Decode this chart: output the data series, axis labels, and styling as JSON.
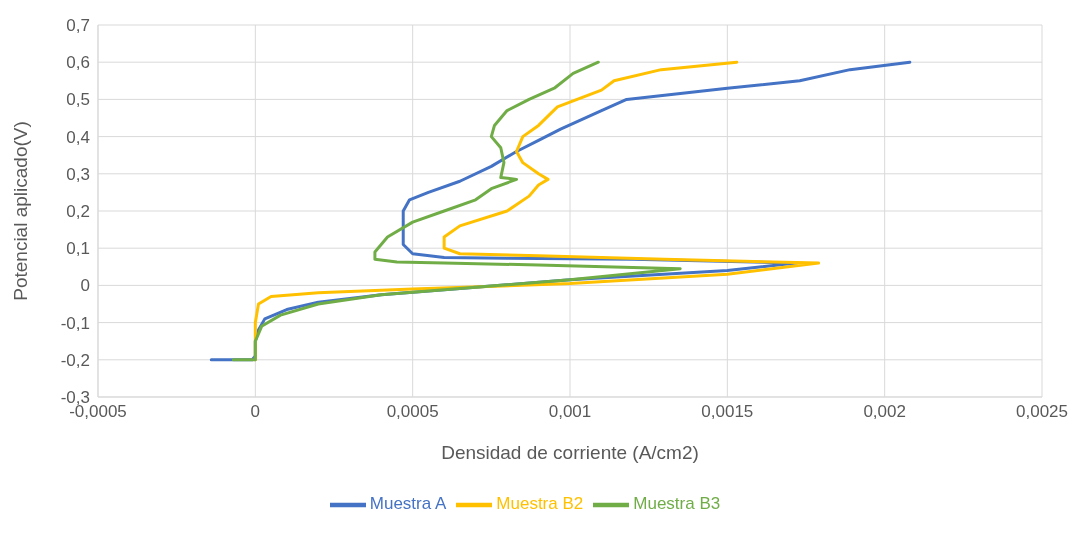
{
  "chart_data": {
    "type": "line",
    "xlabel": "Densidad de corriente (A/cm2)",
    "ylabel": "Potencial aplicado(V)",
    "xlim": [
      -0.0005,
      0.0025
    ],
    "xticks": [
      {
        "value": -0.0005,
        "label": "-0,0005"
      },
      {
        "value": 0,
        "label": "0"
      },
      {
        "value": 0.0005,
        "label": "0,0005"
      },
      {
        "value": 0.001,
        "label": "0,001"
      },
      {
        "value": 0.0015,
        "label": "0,0015"
      },
      {
        "value": 0.002,
        "label": "0,002"
      },
      {
        "value": 0.0025,
        "label": "0,0025"
      }
    ],
    "ylim": [
      -0.3,
      0.7
    ],
    "yticks": [
      {
        "value": -0.3,
        "label": "-0,3"
      },
      {
        "value": -0.2,
        "label": "-0,2"
      },
      {
        "value": -0.1,
        "label": "-0,1"
      },
      {
        "value": 0,
        "label": "0"
      },
      {
        "value": 0.1,
        "label": "0,1"
      },
      {
        "value": 0.2,
        "label": "0,2"
      },
      {
        "value": 0.3,
        "label": "0,3"
      },
      {
        "value": 0.4,
        "label": "0,4"
      },
      {
        "value": 0.5,
        "label": "0,5"
      },
      {
        "value": 0.6,
        "label": "0,6"
      },
      {
        "value": 0.7,
        "label": "0,7"
      }
    ],
    "grid": true,
    "legend": "bottom",
    "marker": "none",
    "line_style": "solid",
    "series": [
      {
        "name": "Muestra A",
        "color": "#4472c4",
        "x": [
          -0.00014,
          -1e-05,
          0,
          0,
          1e-05,
          3e-05,
          0.0001,
          0.0002,
          0.0004,
          0.0007,
          0.001,
          0.0015,
          0.00172,
          0.0012,
          0.0008,
          0.0006,
          0.0005,
          0.00047,
          0.00047,
          0.00047,
          0.00049,
          0.00055,
          0.00065,
          0.00075,
          0.00083,
          0.0009,
          0.00097,
          0.0011,
          0.00118,
          0.0015,
          0.00173,
          0.00189,
          0.00208
        ],
        "values": [
          -0.2,
          -0.2,
          -0.19,
          -0.15,
          -0.12,
          -0.09,
          -0.065,
          -0.045,
          -0.025,
          -0.005,
          0.015,
          0.04,
          0.06,
          0.07,
          0.073,
          0.075,
          0.085,
          0.11,
          0.15,
          0.2,
          0.23,
          0.25,
          0.28,
          0.32,
          0.36,
          0.39,
          0.42,
          0.47,
          0.5,
          0.53,
          0.55,
          0.58,
          0.6
        ]
      },
      {
        "name": "Muestra B2",
        "color": "#ffc000",
        "x": [
          0,
          0,
          1e-05,
          5e-05,
          0.0002,
          0.0005,
          0.001,
          0.0015,
          0.00179,
          0.0013,
          0.0009,
          0.00065,
          0.0006,
          0.0006,
          0.00065,
          0.0008,
          0.00087,
          0.0009,
          0.00093,
          0.0009,
          0.00085,
          0.00083,
          0.00085,
          0.0009,
          0.00096,
          0.0011,
          0.00114,
          0.00129,
          0.00153
        ],
        "values": [
          -0.2,
          -0.1,
          -0.05,
          -0.03,
          -0.02,
          -0.01,
          0.005,
          0.03,
          0.06,
          0.07,
          0.08,
          0.085,
          0.1,
          0.13,
          0.16,
          0.2,
          0.24,
          0.27,
          0.285,
          0.3,
          0.33,
          0.36,
          0.4,
          0.43,
          0.48,
          0.525,
          0.55,
          0.58,
          0.6
        ]
      },
      {
        "name": "Muestra B3",
        "color": "#70ad47",
        "x": [
          -7e-05,
          0,
          0,
          2e-05,
          8e-05,
          0.0002,
          0.0004,
          0.0007,
          0.001,
          0.00135,
          0.0009,
          0.0006,
          0.00045,
          0.00038,
          0.00038,
          0.00042,
          0.0005,
          0.0006,
          0.0007,
          0.00075,
          0.00083,
          0.00078,
          0.00079,
          0.00078,
          0.00075,
          0.00076,
          0.0008,
          0.00087,
          0.00095,
          0.00101,
          0.00109
        ],
        "values": [
          -0.2,
          -0.2,
          -0.15,
          -0.11,
          -0.08,
          -0.05,
          -0.025,
          -0.005,
          0.015,
          0.045,
          0.055,
          0.06,
          0.063,
          0.07,
          0.09,
          0.13,
          0.17,
          0.2,
          0.23,
          0.26,
          0.285,
          0.29,
          0.33,
          0.37,
          0.4,
          0.43,
          0.47,
          0.5,
          0.53,
          0.57,
          0.6
        ]
      }
    ]
  }
}
